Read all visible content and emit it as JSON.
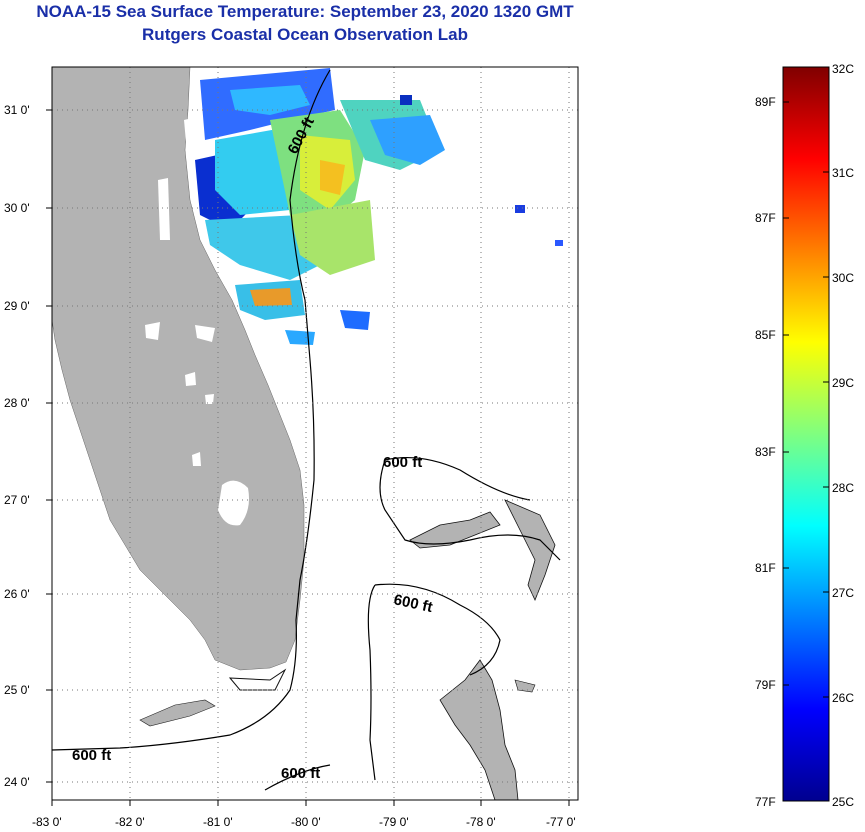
{
  "header": {
    "title": "NOAA-15 Sea Surface Temperature:  September 23, 2020 1320 GMT",
    "subtitle": "Rutgers Coastal Ocean Observation Lab"
  },
  "map": {
    "lon_ticks": [
      "-83 0'",
      "-82 0'",
      "-81 0'",
      "-80 0'",
      "-79 0'",
      "-78 0'",
      "-77 0'"
    ],
    "lat_ticks": [
      "31 0'",
      "30 0'",
      "29 0'",
      "28 0'",
      "27 0'",
      "26 0'",
      "25 0'",
      "24 0'"
    ],
    "contour_labels": [
      "600 ft",
      "600 ft",
      "600 ft",
      "600 ft",
      "600 ft"
    ],
    "land_color": "#b3b3b3"
  },
  "colorbar": {
    "celsius": [
      "32C",
      "31C",
      "30C",
      "29C",
      "28C",
      "27C",
      "26C",
      "25C"
    ],
    "fahrenheit": [
      "89F",
      "87F",
      "85F",
      "83F",
      "81F",
      "79F",
      "77F"
    ],
    "range_c": [
      25,
      32
    ]
  }
}
